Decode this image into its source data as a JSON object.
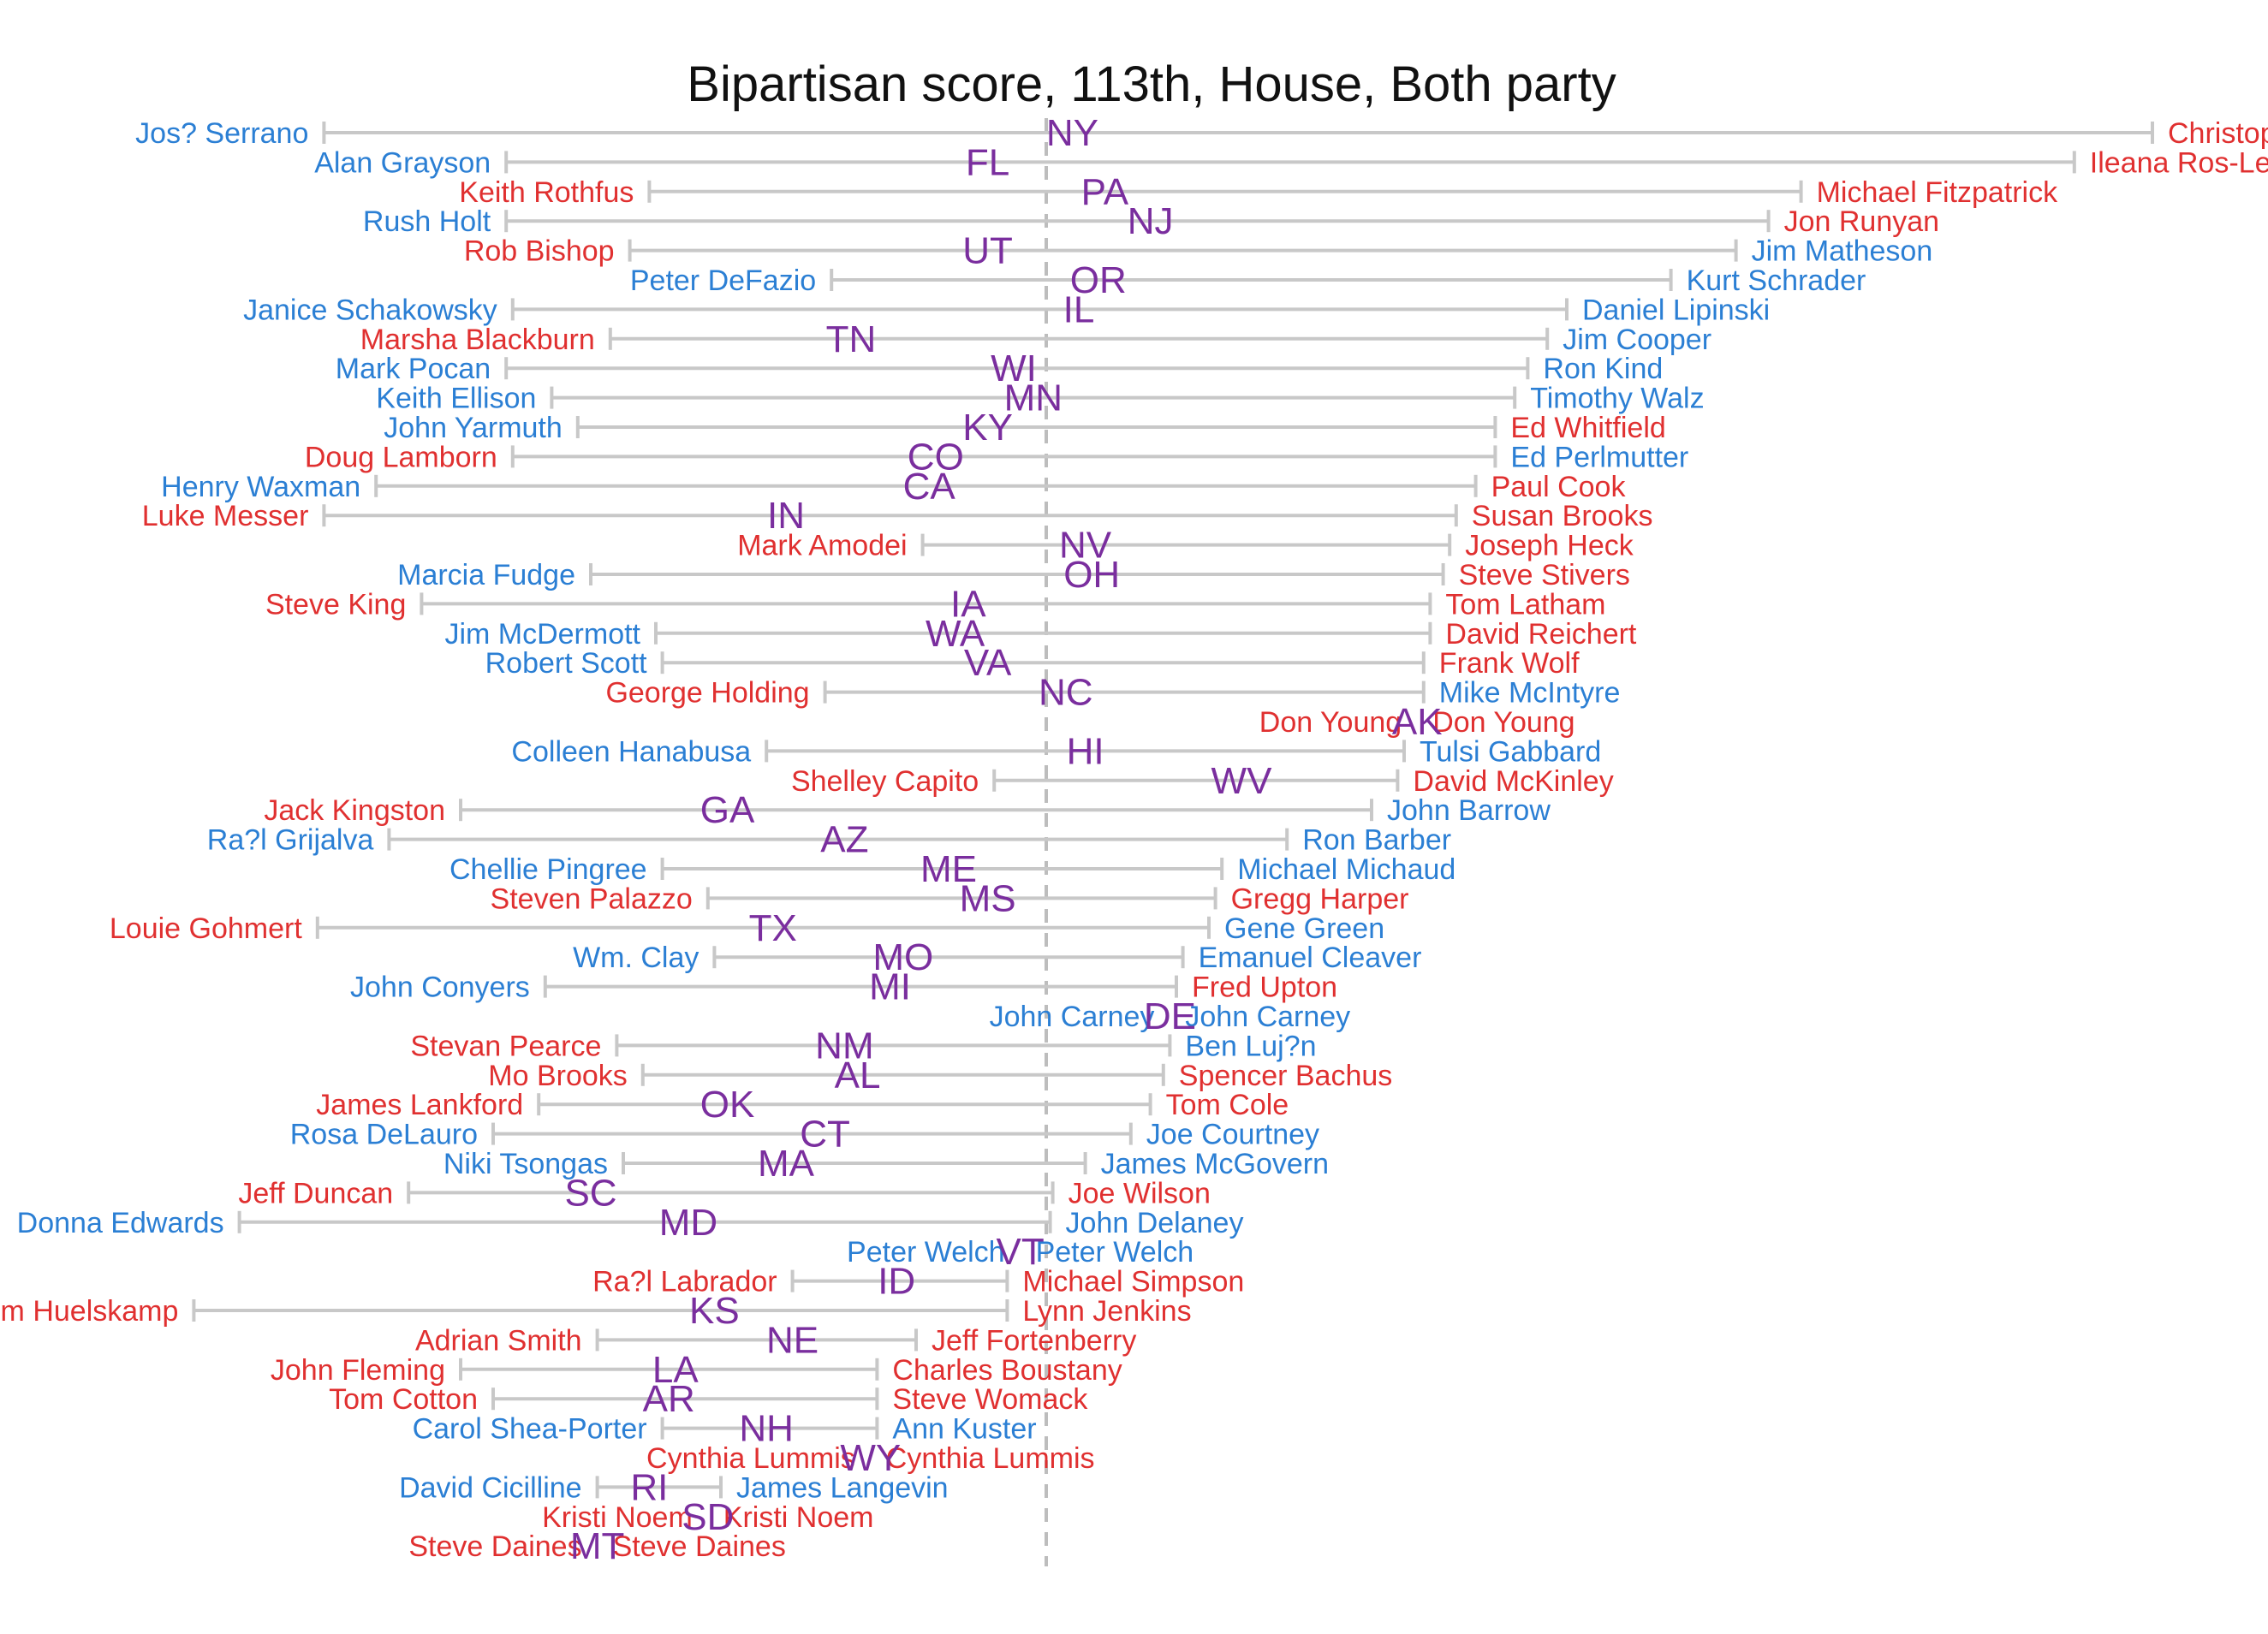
{
  "colors": {
    "democrat": "#2b7fd4",
    "republican": "#e03030",
    "state": "#7a2e9e",
    "range_line": "#c8c8c8",
    "center_line": "#bdbdbd"
  },
  "chart_data": {
    "type": "range-dot",
    "title": "Bipartisan score, 113th, House, Both party",
    "xlabel": "",
    "ylabel": "",
    "xlim": [
      -0.7,
      1.42
    ],
    "center_line_x": 0,
    "grid": false,
    "rows": [
      {
        "state": "NY",
        "state_x": 0.02,
        "left": {
          "name": "Jos? Serrano",
          "party": "D",
          "x": -0.555
        },
        "right": {
          "name": "Christopher Gibs",
          "party": "R",
          "x": 0.85
        }
      },
      {
        "state": "FL",
        "state_x": -0.045,
        "left": {
          "name": "Alan Grayson",
          "party": "D",
          "x": -0.415
        },
        "right": {
          "name": "Ileana Ros-Lehtinen",
          "party": "R",
          "x": 0.79
        }
      },
      {
        "state": "PA",
        "state_x": 0.045,
        "left": {
          "name": "Keith Rothfus",
          "party": "R",
          "x": -0.305
        },
        "right": {
          "name": "Michael Fitzpatrick",
          "party": "R",
          "x": 0.58
        }
      },
      {
        "state": "NJ",
        "state_x": 0.08,
        "left": {
          "name": "Rush Holt",
          "party": "D",
          "x": -0.415
        },
        "right": {
          "name": "Jon Runyan",
          "party": "R",
          "x": 0.555
        }
      },
      {
        "state": "UT",
        "state_x": -0.045,
        "left": {
          "name": "Rob Bishop",
          "party": "R",
          "x": -0.32
        },
        "right": {
          "name": "Jim Matheson",
          "party": "D",
          "x": 0.53
        }
      },
      {
        "state": "OR",
        "state_x": 0.04,
        "left": {
          "name": "Peter DeFazio",
          "party": "D",
          "x": -0.165
        },
        "right": {
          "name": "Kurt Schrader",
          "party": "D",
          "x": 0.48
        }
      },
      {
        "state": "IL",
        "state_x": 0.025,
        "left": {
          "name": "Janice Schakowsky",
          "party": "D",
          "x": -0.41
        },
        "right": {
          "name": "Daniel Lipinski",
          "party": "D",
          "x": 0.4
        }
      },
      {
        "state": "TN",
        "state_x": -0.15,
        "left": {
          "name": "Marsha Blackburn",
          "party": "R",
          "x": -0.335
        },
        "right": {
          "name": "Jim Cooper",
          "party": "D",
          "x": 0.385
        }
      },
      {
        "state": "WI",
        "state_x": -0.025,
        "left": {
          "name": "Mark Pocan",
          "party": "D",
          "x": -0.415
        },
        "right": {
          "name": "Ron Kind",
          "party": "D",
          "x": 0.37
        }
      },
      {
        "state": "MN",
        "state_x": -0.01,
        "left": {
          "name": "Keith Ellison",
          "party": "D",
          "x": -0.38
        },
        "right": {
          "name": "Timothy Walz",
          "party": "D",
          "x": 0.36
        }
      },
      {
        "state": "KY",
        "state_x": -0.045,
        "left": {
          "name": "John Yarmuth",
          "party": "D",
          "x": -0.36
        },
        "right": {
          "name": "Ed Whitfield",
          "party": "R",
          "x": 0.345
        }
      },
      {
        "state": "CO",
        "state_x": -0.085,
        "left": {
          "name": "Doug Lamborn",
          "party": "R",
          "x": -0.41
        },
        "right": {
          "name": "Ed Perlmutter",
          "party": "D",
          "x": 0.345
        }
      },
      {
        "state": "CA",
        "state_x": -0.09,
        "left": {
          "name": "Henry Waxman",
          "party": "D",
          "x": -0.515
        },
        "right": {
          "name": "Paul Cook",
          "party": "R",
          "x": 0.33
        }
      },
      {
        "state": "IN",
        "state_x": -0.2,
        "left": {
          "name": "Luke Messer",
          "party": "R",
          "x": -0.555
        },
        "right": {
          "name": "Susan Brooks",
          "party": "R",
          "x": 0.315
        }
      },
      {
        "state": "NV",
        "state_x": 0.03,
        "left": {
          "name": "Mark Amodei",
          "party": "R",
          "x": -0.095
        },
        "right": {
          "name": "Joseph Heck",
          "party": "R",
          "x": 0.31
        }
      },
      {
        "state": "OH",
        "state_x": 0.035,
        "left": {
          "name": "Marcia Fudge",
          "party": "D",
          "x": -0.35
        },
        "right": {
          "name": "Steve Stivers",
          "party": "R",
          "x": 0.305
        }
      },
      {
        "state": "IA",
        "state_x": -0.06,
        "left": {
          "name": "Steve King",
          "party": "R",
          "x": -0.48
        },
        "right": {
          "name": "Tom Latham",
          "party": "R",
          "x": 0.295
        }
      },
      {
        "state": "WA",
        "state_x": -0.07,
        "left": {
          "name": "Jim McDermott",
          "party": "D",
          "x": -0.3
        },
        "right": {
          "name": "David Reichert",
          "party": "R",
          "x": 0.295
        }
      },
      {
        "state": "VA",
        "state_x": -0.045,
        "left": {
          "name": "Robert Scott",
          "party": "D",
          "x": -0.295
        },
        "right": {
          "name": "Frank Wolf",
          "party": "R",
          "x": 0.29
        }
      },
      {
        "state": "NC",
        "state_x": 0.015,
        "left": {
          "name": "George Holding",
          "party": "R",
          "x": -0.17
        },
        "right": {
          "name": "Mike McIntyre",
          "party": "D",
          "x": 0.29
        }
      },
      {
        "state": "AK",
        "state_x": 0.285,
        "left": {
          "name": "Don Young",
          "party": "R",
          "x": 0.285
        },
        "right": {
          "name": "Don Young",
          "party": "R",
          "x": 0.285
        }
      },
      {
        "state": "HI",
        "state_x": 0.03,
        "left": {
          "name": "Colleen Hanabusa",
          "party": "D",
          "x": -0.215
        },
        "right": {
          "name": "Tulsi Gabbard",
          "party": "D",
          "x": 0.275
        }
      },
      {
        "state": "WV",
        "state_x": 0.15,
        "left": {
          "name": "Shelley Capito",
          "party": "R",
          "x": -0.04
        },
        "right": {
          "name": "David McKinley",
          "party": "R",
          "x": 0.27
        }
      },
      {
        "state": "GA",
        "state_x": -0.245,
        "left": {
          "name": "Jack Kingston",
          "party": "R",
          "x": -0.45
        },
        "right": {
          "name": "John Barrow",
          "party": "D",
          "x": 0.25
        }
      },
      {
        "state": "AZ",
        "state_x": -0.155,
        "left": {
          "name": "Ra?l Grijalva",
          "party": "D",
          "x": -0.505
        },
        "right": {
          "name": "Ron Barber",
          "party": "D",
          "x": 0.185
        }
      },
      {
        "state": "ME",
        "state_x": -0.075,
        "left": {
          "name": "Chellie Pingree",
          "party": "D",
          "x": -0.295
        },
        "right": {
          "name": "Michael Michaud",
          "party": "D",
          "x": 0.135
        }
      },
      {
        "state": "MS",
        "state_x": -0.045,
        "left": {
          "name": "Steven Palazzo",
          "party": "R",
          "x": -0.26
        },
        "right": {
          "name": "Gregg Harper",
          "party": "R",
          "x": 0.13
        }
      },
      {
        "state": "TX",
        "state_x": -0.21,
        "left": {
          "name": "Louie Gohmert",
          "party": "R",
          "x": -0.56
        },
        "right": {
          "name": "Gene Green",
          "party": "D",
          "x": 0.125
        }
      },
      {
        "state": "MO",
        "state_x": -0.11,
        "left": {
          "name": "Wm. Clay",
          "party": "D",
          "x": -0.255
        },
        "right": {
          "name": "Emanuel Cleaver",
          "party": "D",
          "x": 0.105
        }
      },
      {
        "state": "MI",
        "state_x": -0.12,
        "left": {
          "name": "John Conyers",
          "party": "D",
          "x": -0.385
        },
        "right": {
          "name": "Fred Upton",
          "party": "R",
          "x": 0.1
        }
      },
      {
        "state": "DE",
        "state_x": 0.095,
        "left": {
          "name": "John Carney",
          "party": "D",
          "x": 0.095
        },
        "right": {
          "name": "John Carney",
          "party": "D",
          "x": 0.095
        }
      },
      {
        "state": "NM",
        "state_x": -0.155,
        "left": {
          "name": "Stevan Pearce",
          "party": "R",
          "x": -0.33
        },
        "right": {
          "name": "Ben Luj?n",
          "party": "D",
          "x": 0.095
        }
      },
      {
        "state": "AL",
        "state_x": -0.145,
        "left": {
          "name": "Mo Brooks",
          "party": "R",
          "x": -0.31
        },
        "right": {
          "name": "Spencer Bachus",
          "party": "R",
          "x": 0.09
        }
      },
      {
        "state": "OK",
        "state_x": -0.245,
        "left": {
          "name": "James Lankford",
          "party": "R",
          "x": -0.39
        },
        "right": {
          "name": "Tom Cole",
          "party": "R",
          "x": 0.08
        }
      },
      {
        "state": "CT",
        "state_x": -0.17,
        "left": {
          "name": "Rosa DeLauro",
          "party": "D",
          "x": -0.425
        },
        "right": {
          "name": "Joe Courtney",
          "party": "D",
          "x": 0.065
        }
      },
      {
        "state": "MA",
        "state_x": -0.2,
        "left": {
          "name": "Niki Tsongas",
          "party": "D",
          "x": -0.325
        },
        "right": {
          "name": "James McGovern",
          "party": "D",
          "x": 0.03
        }
      },
      {
        "state": "SC",
        "state_x": -0.35,
        "left": {
          "name": "Jeff Duncan",
          "party": "R",
          "x": -0.49
        },
        "right": {
          "name": "Joe Wilson",
          "party": "R",
          "x": 0.005
        }
      },
      {
        "state": "MD",
        "state_x": -0.275,
        "left": {
          "name": "Donna Edwards",
          "party": "D",
          "x": -0.62
        },
        "right": {
          "name": "John Delaney",
          "party": "D",
          "x": 0.003
        }
      },
      {
        "state": "VT",
        "state_x": -0.02,
        "left": {
          "name": "Peter Welch",
          "party": "D",
          "x": -0.02
        },
        "right": {
          "name": "Peter Welch",
          "party": "D",
          "x": -0.02
        }
      },
      {
        "state": "ID",
        "state_x": -0.115,
        "left": {
          "name": "Ra?l Labrador",
          "party": "R",
          "x": -0.195
        },
        "right": {
          "name": "Michael Simpson",
          "party": "R",
          "x": -0.03
        }
      },
      {
        "state": "KS",
        "state_x": -0.255,
        "left": {
          "name": "Tim Huelskamp",
          "party": "R",
          "x": -0.655
        },
        "right": {
          "name": "Lynn Jenkins",
          "party": "R",
          "x": -0.03
        }
      },
      {
        "state": "NE",
        "state_x": -0.195,
        "left": {
          "name": "Adrian Smith",
          "party": "R",
          "x": -0.345
        },
        "right": {
          "name": "Jeff Fortenberry",
          "party": "R",
          "x": -0.1
        }
      },
      {
        "state": "LA",
        "state_x": -0.285,
        "left": {
          "name": "John Fleming",
          "party": "R",
          "x": -0.45
        },
        "right": {
          "name": "Charles Boustany",
          "party": "R",
          "x": -0.13
        }
      },
      {
        "state": "AR",
        "state_x": -0.29,
        "left": {
          "name": "Tom Cotton",
          "party": "R",
          "x": -0.425
        },
        "right": {
          "name": "Steve Womack",
          "party": "R",
          "x": -0.13
        }
      },
      {
        "state": "NH",
        "state_x": -0.215,
        "left": {
          "name": "Carol Shea-Porter",
          "party": "D",
          "x": -0.295
        },
        "right": {
          "name": "Ann Kuster",
          "party": "D",
          "x": -0.13
        }
      },
      {
        "state": "WY",
        "state_x": -0.135,
        "left": {
          "name": "Cynthia Lummis",
          "party": "R",
          "x": -0.135
        },
        "right": {
          "name": "Cynthia Lummis",
          "party": "R",
          "x": -0.135
        }
      },
      {
        "state": "RI",
        "state_x": -0.305,
        "left": {
          "name": "David Cicilline",
          "party": "D",
          "x": -0.345
        },
        "right": {
          "name": "James Langevin",
          "party": "D",
          "x": -0.25
        }
      },
      {
        "state": "SD",
        "state_x": -0.26,
        "left": {
          "name": "Kristi Noem",
          "party": "R",
          "x": -0.26
        },
        "right": {
          "name": "Kristi Noem",
          "party": "R",
          "x": -0.26
        }
      },
      {
        "state": "MT",
        "state_x": -0.345,
        "left": {
          "name": "Steve Daines",
          "party": "R",
          "x": -0.345
        },
        "right": {
          "name": "Steve Daines",
          "party": "R",
          "x": -0.345
        }
      }
    ]
  }
}
